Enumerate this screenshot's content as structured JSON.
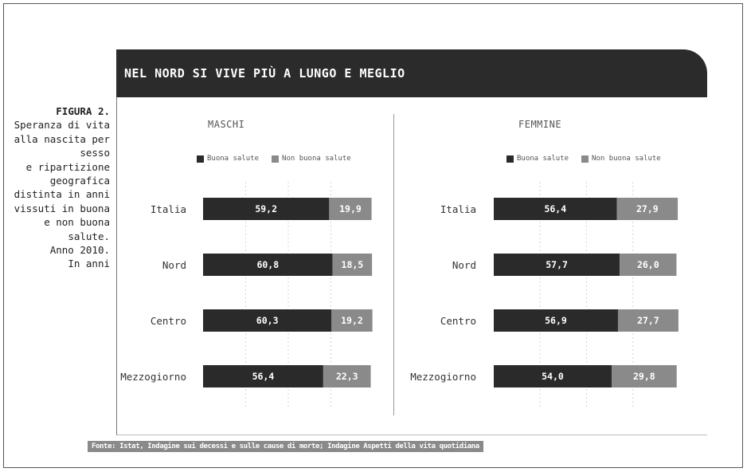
{
  "figure_label": "FIGURA 2.",
  "caption": "Speranza di vita\nalla nascita per\nsesso\ne ripartizione\ngeografica\ndistinta in anni\nvissuti in buona\ne non buona\nsalute.\nAnno 2010.\nIn anni",
  "title": "NEL NORD SI VIVE PIÙ A LUNGO E MEGLIO",
  "source": "Fonte: Istat, Indagine sui decessi e sulle cause di morte; Indagine Aspetti della vita quotidiana",
  "colors": {
    "good": "#2a2a2a",
    "bad": "#8a8a8a"
  },
  "chart_data": [
    {
      "type": "bar",
      "orientation": "horizontal",
      "stacked": true,
      "title": "MASCHI",
      "categories": [
        "Italia",
        "Nord",
        "Centro",
        "Mezzogiorno"
      ],
      "series": [
        {
          "name": "Buona salute",
          "values": [
            59.2,
            60.8,
            60.3,
            56.4
          ]
        },
        {
          "name": "Non buona salute",
          "values": [
            19.9,
            18.5,
            19.2,
            22.3
          ]
        }
      ],
      "value_labels": [
        [
          "59,2",
          "60,8",
          "60,3",
          "56,4"
        ],
        [
          "19,9",
          "18,5",
          "19,2",
          "22,3"
        ]
      ],
      "xlim": [
        0,
        80
      ],
      "legend": "top"
    },
    {
      "type": "bar",
      "orientation": "horizontal",
      "stacked": true,
      "title": "FEMMINE",
      "categories": [
        "Italia",
        "Nord",
        "Centro",
        "Mezzogiorno"
      ],
      "series": [
        {
          "name": "Buona salute",
          "values": [
            56.4,
            57.7,
            56.9,
            54.0
          ]
        },
        {
          "name": "Non buona salute",
          "values": [
            27.9,
            26.0,
            27.7,
            29.8
          ]
        }
      ],
      "value_labels": [
        [
          "56,4",
          "57,7",
          "56,9",
          "54,0"
        ],
        [
          "27,9",
          "26,0",
          "27,7",
          "29,8"
        ]
      ],
      "xlim": [
        0,
        85
      ],
      "legend": "top"
    }
  ]
}
